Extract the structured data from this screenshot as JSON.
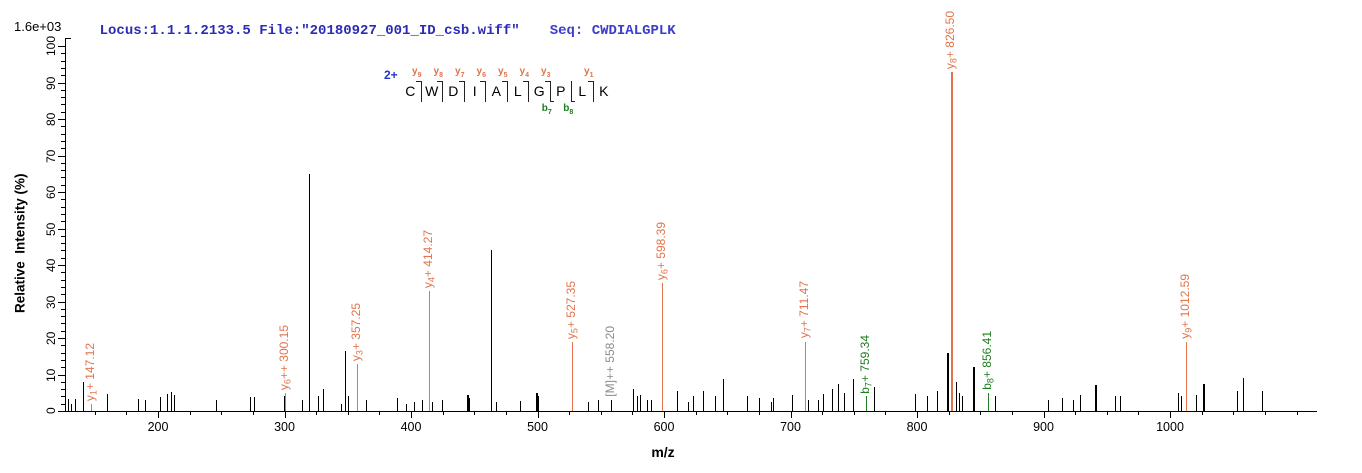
{
  "header": {
    "locus_file": "Locus:1.1.1.2133.5 File:\"20180927_001_ID_csb.wiff\"",
    "seq": "Seq: CWDIALGPLK",
    "base_peak_intensity": "1.6e+03"
  },
  "peptide": {
    "charge_label": "2+",
    "residues": [
      "C",
      "W",
      "D",
      "I",
      "A",
      "L",
      "G",
      "P",
      "L",
      "K"
    ],
    "y_ions": [
      {
        "bond": 1,
        "label": "y9"
      },
      {
        "bond": 2,
        "label": "y8"
      },
      {
        "bond": 3,
        "label": "y7"
      },
      {
        "bond": 4,
        "label": "y6"
      },
      {
        "bond": 5,
        "label": "y5"
      },
      {
        "bond": 6,
        "label": "y4"
      },
      {
        "bond": 7,
        "label": "y3"
      },
      {
        "bond": 9,
        "label": "y1"
      }
    ],
    "b_ions": [
      {
        "bond": 7,
        "label": "b7"
      },
      {
        "bond": 8,
        "label": "b8"
      }
    ]
  },
  "axes": {
    "ylabel": "Relative  Intensity (%)",
    "xlabel": "m/z"
  },
  "colors": {
    "y_ion": "#E2734B",
    "b_ion": "#1E7E1E",
    "precursor_label": "#8A8A8A",
    "header_locus": "#2B2BB5",
    "header_seq": "#3C3CCD",
    "charge": "#2233CC",
    "peak": "#000000",
    "axis": "#000000"
  },
  "chart_data": {
    "type": "bar",
    "subtype": "ms2-fragment-ion-stick-spectrum",
    "title": "Locus:1.1.1.2133.5 File:\"20180927_001_ID_csb.wiff\"  Seq: CWDIALGPLK",
    "xlabel": "m/z",
    "ylabel": "Relative  Intensity (%)",
    "xlim": [
      126,
      1115
    ],
    "ylim": [
      0,
      100
    ],
    "x_major_ticks": [
      200,
      300,
      400,
      500,
      600,
      700,
      800,
      900,
      1000
    ],
    "x_minor_tick_step": 25,
    "y_major_tick_step": 10,
    "y_minor_tick_step": 2,
    "base_peak_intensity_label": "1.6e+03",
    "legend_position": "none",
    "grid": false,
    "annotated_peaks": [
      {
        "ion": "y1+",
        "mz": 147.12,
        "intensity_pct": 2,
        "label": "y1+ 147.12",
        "series": "y"
      },
      {
        "ion": "y6++",
        "mz": 300.15,
        "intensity_pct": 5,
        "label": "y6++ 300.15",
        "series": "y"
      },
      {
        "ion": "y3+",
        "mz": 357.25,
        "intensity_pct": 13,
        "label": "y3+ 357.25",
        "series": "y"
      },
      {
        "ion": "y4+",
        "mz": 414.27,
        "intensity_pct": 33,
        "label": "y4+ 414.27",
        "series": "y"
      },
      {
        "ion": "y5+",
        "mz": 527.35,
        "intensity_pct": 19,
        "label": "y5+ 527.35",
        "series": "y"
      },
      {
        "ion": "[M]++",
        "mz": 558.2,
        "intensity_pct": 3,
        "label": "[M]++ 558.20",
        "series": "precursor"
      },
      {
        "ion": "y6+",
        "mz": 598.39,
        "intensity_pct": 35,
        "label": "y6+ 598.39",
        "series": "y"
      },
      {
        "ion": "y7+",
        "mz": 711.47,
        "intensity_pct": 19,
        "label": "y7+ 711.47",
        "series": "y"
      },
      {
        "ion": "b7+",
        "mz": 759.34,
        "intensity_pct": 4,
        "label": "b7+ 759.34",
        "series": "b"
      },
      {
        "ion": "y8+",
        "mz": 826.5,
        "intensity_pct": 93,
        "label": "y8+ 826.50",
        "series": "y",
        "base_peak": true
      },
      {
        "ion": "b8+",
        "mz": 856.41,
        "intensity_pct": 5,
        "label": "b8+ 856.41",
        "series": "b"
      },
      {
        "ion": "y9+",
        "mz": 1012.59,
        "intensity_pct": 19,
        "label": "y9+ 1012.59",
        "series": "y"
      }
    ],
    "background_peaks": [
      [
        128.9,
        3.3
      ],
      [
        131.2,
        2
      ],
      [
        134.4,
        3.3
      ],
      [
        140.7,
        8
      ],
      [
        159.7,
        4.6
      ],
      [
        184.2,
        3.3
      ],
      [
        189.7,
        3
      ],
      [
        201.6,
        3.8
      ],
      [
        207.1,
        4.6
      ],
      [
        210.3,
        5.2
      ],
      [
        212.6,
        4.3
      ],
      [
        245.8,
        3
      ],
      [
        272.7,
        3.7
      ],
      [
        275.9,
        3.7
      ],
      [
        299.3,
        4
      ],
      [
        313.8,
        3
      ],
      [
        319.4,
        65
      ],
      [
        326.5,
        4.2
      ],
      [
        330.4,
        6
      ],
      [
        344.7,
        2
      ],
      [
        347.8,
        16.5
      ],
      [
        350.2,
        4
      ],
      [
        364.4,
        3
      ],
      [
        388.9,
        3.5
      ],
      [
        396.0,
        2
      ],
      [
        402.4,
        2.5
      ],
      [
        408.7,
        3
      ],
      [
        416.6,
        2.5
      ],
      [
        424.5,
        3
      ],
      [
        444.3,
        4.3,
        2
      ],
      [
        445.8,
        3.5
      ],
      [
        463.0,
        44
      ],
      [
        467.2,
        2.5
      ],
      [
        486.2,
        2.7
      ],
      [
        498.8,
        5,
        2
      ],
      [
        500.4,
        4
      ],
      [
        539.9,
        2.4
      ],
      [
        547.8,
        3
      ],
      [
        575.5,
        6
      ],
      [
        578.7,
        4
      ],
      [
        581.0,
        4.5
      ],
      [
        586.6,
        3
      ],
      [
        589.7,
        3
      ],
      [
        610.3,
        5.6
      ],
      [
        619.0,
        2.5
      ],
      [
        622.9,
        4
      ],
      [
        630.8,
        5.5
      ],
      [
        640.3,
        4
      ],
      [
        646.6,
        8.8
      ],
      [
        665.6,
        4
      ],
      [
        675.1,
        3.5
      ],
      [
        684.6,
        2.5
      ],
      [
        686.2,
        3.5
      ],
      [
        701.2,
        4.4
      ],
      [
        713.8,
        3
      ],
      [
        721.7,
        3
      ],
      [
        725.7,
        4.7
      ],
      [
        732.8,
        6
      ],
      [
        737.5,
        7.3
      ],
      [
        742.3,
        5
      ],
      [
        749.4,
        8.8
      ],
      [
        766.0,
        6.6
      ],
      [
        798.4,
        4.7
      ],
      [
        807.9,
        4
      ],
      [
        815.8,
        5.5
      ],
      [
        823.7,
        16,
        2
      ],
      [
        830.8,
        8
      ],
      [
        833.2,
        5
      ],
      [
        835.6,
        4
      ],
      [
        844.3,
        12,
        2
      ],
      [
        861.7,
        4
      ],
      [
        903.6,
        3
      ],
      [
        914.6,
        3.5
      ],
      [
        923.3,
        3
      ],
      [
        928.9,
        4.5
      ],
      [
        940.7,
        7,
        2
      ],
      [
        956.5,
        4
      ],
      [
        960.5,
        4
      ],
      [
        1006.3,
        5
      ],
      [
        1008.7,
        4
      ],
      [
        1020.6,
        4.5
      ],
      [
        1026.1,
        7.5,
        2
      ],
      [
        1053.0,
        5.5
      ],
      [
        1057.7,
        9
      ],
      [
        1072.7,
        5.5
      ]
    ]
  }
}
